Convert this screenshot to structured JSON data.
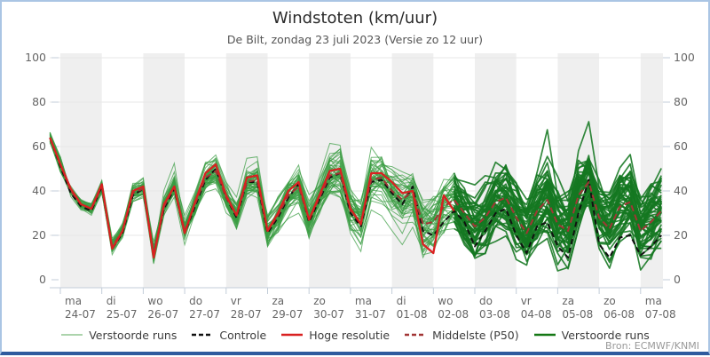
{
  "header": {
    "title": "Windstoten (km/uur)",
    "subtitle": "De Bilt, zondag 23 juli 2023 (Versie zo 12 uur)"
  },
  "attribution": "Bron: ECMWF/KNMI",
  "legend": {
    "items": [
      {
        "label": "Verstoorde runs",
        "style": "ensemble-thin"
      },
      {
        "label": "Controle",
        "style": "control-dashed"
      },
      {
        "label": "Hoge resolutie",
        "style": "hires-solid"
      },
      {
        "label": "Middelste (P50)",
        "style": "median-dashed"
      },
      {
        "label": "Verstoorde runs",
        "style": "ensemble-thick"
      }
    ]
  },
  "colors": {
    "ensemble_thin": "rgba(58,156,66,0.72)",
    "ensemble_thin_legend": "#90c590",
    "ensemble_thick": "rgba(21,120,33,0.88)",
    "ensemble_thick_legend": "#157815",
    "control": "#111111",
    "hires": "#d92121",
    "median": "#a23535",
    "band": "#efefef",
    "grid": "#e7e7e7",
    "axis": "#c3cdd9",
    "tick_label": "#666666",
    "frame": "#aac5e4",
    "frame_bottom": "#2f5b9e"
  },
  "chart_data": {
    "type": "line",
    "title": "Windstoten (km/uur)",
    "subtitle": "De Bilt, zondag 23 juli 2023 (Versie zo 12 uur)",
    "ylabel": "km/uur",
    "ylim": [
      0,
      100
    ],
    "yticks": [
      0,
      20,
      40,
      60,
      80,
      100
    ],
    "grid": true,
    "legend_position": "bottom",
    "x_start_day": -0.25,
    "x_step_days": 0.25,
    "x_end_day": 14.5,
    "day_labels": [
      {
        "weekday": "ma",
        "date": "24-07"
      },
      {
        "weekday": "di",
        "date": "25-07"
      },
      {
        "weekday": "wo",
        "date": "26-07"
      },
      {
        "weekday": "do",
        "date": "27-07"
      },
      {
        "weekday": "vr",
        "date": "28-07"
      },
      {
        "weekday": "za",
        "date": "29-07"
      },
      {
        "weekday": "zo",
        "date": "30-07"
      },
      {
        "weekday": "ma",
        "date": "31-07"
      },
      {
        "weekday": "di",
        "date": "01-08"
      },
      {
        "weekday": "wo",
        "date": "02-08"
      },
      {
        "weekday": "do",
        "date": "03-08"
      },
      {
        "weekday": "vr",
        "date": "04-08"
      },
      {
        "weekday": "za",
        "date": "05-08"
      },
      {
        "weekday": "zo",
        "date": "06-08"
      },
      {
        "weekday": "ma",
        "date": "07-08"
      }
    ],
    "series": [
      {
        "name": "Hoge resolutie",
        "values": [
          64,
          52,
          41,
          34,
          32,
          43,
          14,
          22,
          40,
          42,
          10,
          34,
          42,
          21,
          35,
          48,
          52,
          38,
          29,
          46,
          47,
          22,
          30,
          40,
          44,
          27,
          38,
          49,
          50,
          32,
          25,
          48,
          48,
          44,
          39,
          40,
          16,
          12,
          38,
          31
        ]
      },
      {
        "name": "Controle",
        "values": [
          64,
          51,
          39,
          33,
          31,
          42,
          14,
          21,
          38,
          41,
          11,
          32,
          41,
          21,
          33,
          45,
          50,
          37,
          28,
          44,
          44,
          21,
          28,
          37,
          43,
          26,
          36,
          46,
          48,
          30,
          24,
          44,
          45,
          39,
          34,
          42,
          22,
          20,
          26,
          31,
          26,
          15,
          22,
          30,
          32,
          20,
          12,
          24,
          26,
          15,
          10,
          30,
          45,
          16,
          10,
          19,
          20,
          11,
          15,
          20
        ]
      },
      {
        "name": "Middelste (P50)",
        "values": [
          64,
          52,
          40,
          34,
          32,
          42,
          15,
          22,
          39,
          41,
          12,
          33,
          42,
          22,
          34,
          46,
          49,
          37,
          29,
          44,
          45,
          22,
          29,
          38,
          42,
          27,
          37,
          47,
          48,
          31,
          26,
          45,
          46,
          40,
          36,
          40,
          25,
          26,
          33,
          36,
          30,
          24,
          28,
          35,
          37,
          28,
          21,
          31,
          36,
          25,
          22,
          38,
          44,
          28,
          23,
          33,
          35,
          22,
          26,
          31
        ]
      }
    ],
    "ensemble": {
      "name": "Verstoorde runs",
      "count": 50,
      "seed": 20230723,
      "thin_until_day": 9.5
    }
  }
}
